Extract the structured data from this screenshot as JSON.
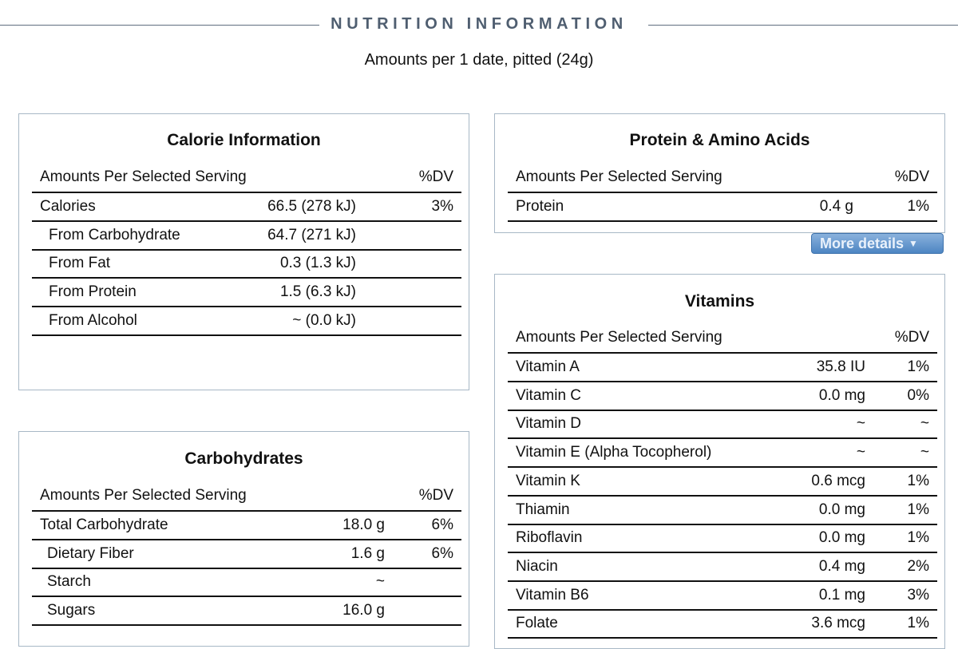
{
  "header": {
    "title": "NUTRITION INFORMATION",
    "subtitle": "Amounts per 1 date, pitted (24g)"
  },
  "common": {
    "col_header": "Amounts Per Selected Serving",
    "dv_header": "%DV"
  },
  "calorie": {
    "title": "Calorie Information",
    "rows": [
      {
        "label": "Calories",
        "value": "66.5 (278 kJ)",
        "dv": "3%"
      },
      {
        "label": "From Carbohydrate",
        "value": "64.7 (271 kJ)",
        "dv": ""
      },
      {
        "label": "From Fat",
        "value": "0.3 (1.3 kJ)",
        "dv": ""
      },
      {
        "label": "From Protein",
        "value": "1.5 (6.3 kJ)",
        "dv": ""
      },
      {
        "label": "From Alcohol",
        "value": "~ (0.0 kJ)",
        "dv": ""
      }
    ]
  },
  "carbs": {
    "title": "Carbohydrates",
    "rows": [
      {
        "label": "Total Carbohydrate",
        "value": "18.0 g",
        "dv": "6%"
      },
      {
        "label": "Dietary Fiber",
        "value": "1.6 g",
        "dv": "6%"
      },
      {
        "label": "Starch",
        "value": "~",
        "dv": ""
      },
      {
        "label": "Sugars",
        "value": "16.0 g",
        "dv": ""
      }
    ]
  },
  "protein": {
    "title": "Protein & Amino Acids",
    "rows": [
      {
        "label": "Protein",
        "value": "0.4 g",
        "dv": "1%"
      }
    ],
    "more_label": "More details"
  },
  "vitamins": {
    "title": "Vitamins",
    "rows": [
      {
        "label": "Vitamin A",
        "value": "35.8 IU",
        "dv": "1%"
      },
      {
        "label": "Vitamin C",
        "value": "0.0 mg",
        "dv": "0%"
      },
      {
        "label": "Vitamin D",
        "value": "~",
        "dv": "~"
      },
      {
        "label": "Vitamin E (Alpha Tocopherol)",
        "value": "~",
        "dv": "~"
      },
      {
        "label": "Vitamin K",
        "value": "0.6 mcg",
        "dv": "1%"
      },
      {
        "label": "Thiamin",
        "value": "0.0 mg",
        "dv": "1%"
      },
      {
        "label": "Riboflavin",
        "value": "0.0 mg",
        "dv": "1%"
      },
      {
        "label": "Niacin",
        "value": "0.4 mg",
        "dv": "2%"
      },
      {
        "label": "Vitamin B6",
        "value": "0.1 mg",
        "dv": "3%"
      },
      {
        "label": "Folate",
        "value": "3.6 mcg",
        "dv": "1%"
      }
    ]
  },
  "colors": {
    "header_text": "#4f5e70",
    "panel_border": "#a8b8c6",
    "button": "#4d85c2"
  }
}
